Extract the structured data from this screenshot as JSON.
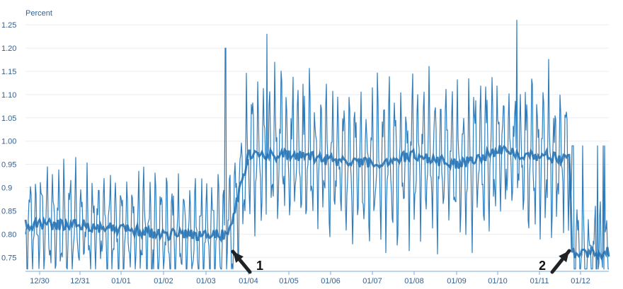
{
  "chart_data": {
    "type": "line",
    "title": "",
    "xlabel": "",
    "ylabel": "",
    "y_unit_label": "Percent",
    "ylim": [
      0.72,
      1.27
    ],
    "yticks": [
      "1.25",
      "1.20",
      "1.15",
      "1.10",
      "1.05",
      "1.00",
      "0.95",
      "0.9",
      "0.85",
      "0.80",
      "0.75"
    ],
    "xticks": [
      "12/30",
      "12/31",
      "01/01",
      "01/02",
      "01/03",
      "01/04",
      "01/05",
      "01/06",
      "01/07",
      "01/08",
      "01/09",
      "01/10",
      "01/11",
      "01/12"
    ],
    "grid": true,
    "line_color": "#2f7dbd",
    "series": [
      {
        "x": [
          "12/30",
          "12/31",
          "01/01",
          "01/02",
          "01/03",
          "01/03",
          "01/04",
          "01/05",
          "01/06",
          "01/07",
          "01/08",
          "01/09",
          "01/10",
          "01/11",
          "01/11",
          "01/12"
        ],
        "values": [
          0.82,
          0.82,
          0.81,
          0.8,
          0.8,
          0.8,
          0.97,
          0.97,
          0.96,
          0.95,
          0.97,
          0.95,
          0.98,
          0.96,
          0.76,
          0.76
        ]
      }
    ],
    "annotations": [
      {
        "label": "1",
        "x": "01/03",
        "y": 0.76
      },
      {
        "label": "2",
        "x": "01/11",
        "y": 0.76
      }
    ]
  }
}
